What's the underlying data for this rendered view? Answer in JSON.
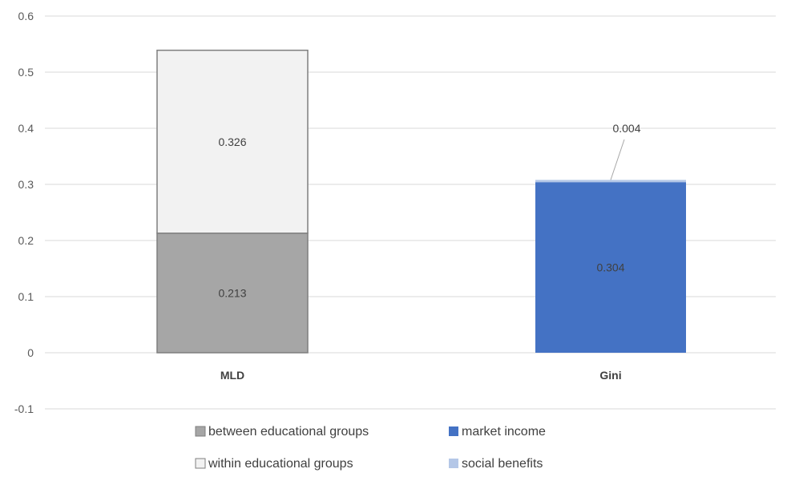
{
  "chart_data": {
    "type": "bar",
    "stacked": true,
    "categories": [
      "MLD",
      "Gini"
    ],
    "ylim": [
      -0.1,
      0.6
    ],
    "yticks": [
      "-0.1",
      "0",
      "0.1",
      "0.2",
      "0.3",
      "0.4",
      "0.5",
      "0.6"
    ],
    "grid": true,
    "legend_position": "bottom",
    "series": [
      {
        "name": "between educational groups",
        "color": "#a6a6a6",
        "stroke": "#7f7f7f",
        "values": [
          0.213,
          null
        ],
        "labels": [
          "0.213",
          ""
        ]
      },
      {
        "name": "within educational groups",
        "color": "#f2f2f2",
        "stroke": "#7f7f7f",
        "values": [
          0.326,
          null
        ],
        "labels": [
          "0.326",
          ""
        ]
      },
      {
        "name": "market income",
        "color": "#4472c4",
        "stroke": "#4472c4",
        "values": [
          null,
          0.304
        ],
        "labels": [
          "",
          "0.304"
        ]
      },
      {
        "name": "social benefits",
        "color": "#b4c7e7",
        "stroke": "#b4c7e7",
        "values": [
          null,
          0.004
        ],
        "labels": [
          "",
          "0.004"
        ]
      }
    ],
    "legend_order": [
      0,
      2,
      1,
      3
    ]
  }
}
